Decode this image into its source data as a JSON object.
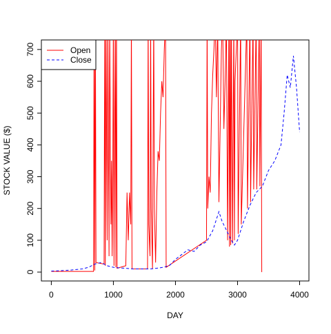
{
  "chart_data": {
    "type": "line",
    "xlabel": "DAY",
    "ylabel": "STOCK VALUE ($)",
    "xlim": [
      -160,
      4150
    ],
    "ylim": [
      -28,
      730
    ],
    "xticks": [
      0,
      1000,
      2000,
      3000,
      4000
    ],
    "yticks": [
      0,
      100,
      200,
      300,
      400,
      500,
      600,
      700
    ],
    "legend": "top-left",
    "series": [
      {
        "name": "Open",
        "color": "#ff0000",
        "dash": "solid",
        "x": [
          0,
          680,
          690,
          700,
          710,
          720,
          850,
          860,
          870,
          880,
          900,
          910,
          930,
          940,
          960,
          970,
          980,
          990,
          1000,
          1010,
          1030,
          1040,
          1050,
          1060,
          1200,
          1220,
          1240,
          1260,
          1280,
          1290,
          1300,
          1550,
          1560,
          1570,
          1590,
          1600,
          1610,
          1630,
          1650,
          1660,
          1680,
          1700,
          1720,
          1740,
          1760,
          1780,
          1800,
          1820,
          1840,
          1850,
          2500,
          2510,
          2520,
          2540,
          2560,
          2580,
          2600,
          2620,
          2640,
          2660,
          2680,
          2700,
          2720,
          2740,
          2760,
          2780,
          2800,
          2820,
          2840,
          2860,
          2870,
          2880,
          2890,
          2900,
          2920,
          2940,
          2950,
          2960,
          2980,
          3000,
          3010,
          3050,
          3060,
          3150,
          3160,
          3200,
          3210,
          3250,
          3260,
          3300,
          3310,
          3350,
          3360,
          3380,
          3390
        ],
        "values": [
          2,
          2,
          800,
          5,
          800,
          30,
          25,
          800,
          20,
          800,
          100,
          800,
          50,
          800,
          150,
          350,
          50,
          300,
          800,
          20,
          800,
          15,
          800,
          12,
          20,
          250,
          100,
          250,
          150,
          800,
          10,
          10,
          800,
          150,
          50,
          800,
          200,
          10,
          800,
          200,
          30,
          250,
          380,
          350,
          500,
          600,
          550,
          700,
          800,
          15,
          100,
          800,
          200,
          300,
          250,
          500,
          620,
          700,
          800,
          550,
          800,
          220,
          450,
          700,
          800,
          450,
          600,
          800,
          100,
          800,
          80,
          800,
          85,
          800,
          90,
          800,
          100,
          600,
          700,
          800,
          120,
          800,
          150,
          800,
          200,
          800,
          220,
          800,
          260,
          800,
          260,
          800,
          270,
          800,
          0
        ]
      },
      {
        "name": "Close",
        "color": "#0000ff",
        "dash": "dashed",
        "x": [
          0,
          100,
          200,
          300,
          400,
          500,
          600,
          700,
          800,
          900,
          1000,
          1100,
          1200,
          1300,
          1400,
          1500,
          1600,
          1700,
          1800,
          1900,
          2000,
          2100,
          2200,
          2300,
          2400,
          2500,
          2600,
          2700,
          2750,
          2800,
          2900,
          2950,
          3000,
          3100,
          3200,
          3300,
          3400,
          3500,
          3600,
          3700,
          3750,
          3800,
          3850,
          3900,
          3950,
          4000
        ],
        "values": [
          3,
          4,
          5,
          6,
          8,
          10,
          15,
          25,
          30,
          20,
          15,
          13,
          12,
          10,
          10,
          10,
          10,
          12,
          15,
          20,
          40,
          55,
          70,
          65,
          85,
          95,
          130,
          190,
          160,
          140,
          100,
          85,
          100,
          160,
          210,
          250,
          270,
          320,
          350,
          400,
          500,
          620,
          580,
          680,
          580,
          440
        ]
      }
    ]
  }
}
